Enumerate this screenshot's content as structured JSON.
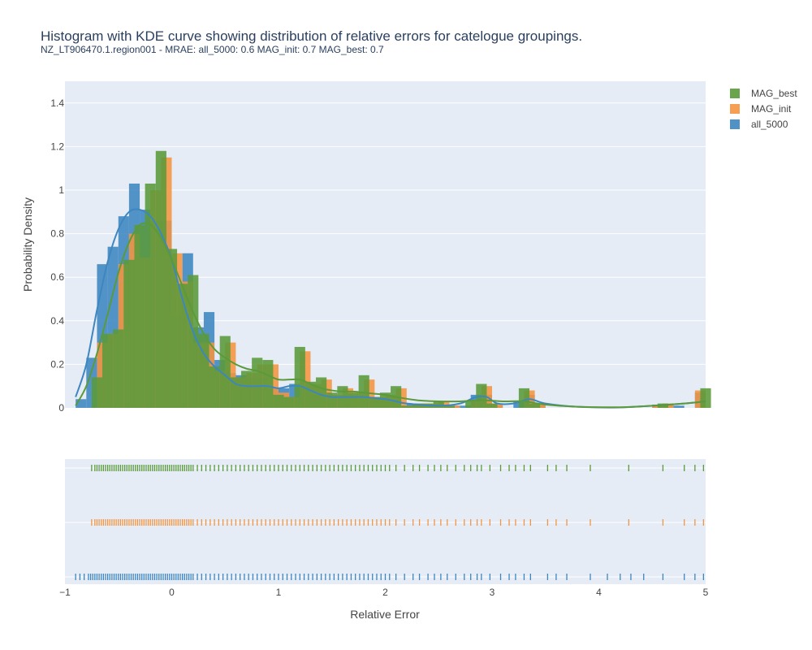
{
  "chart_data": {
    "type": "histogram",
    "title": "Histogram with KDE curve showing distribution of relative errors for catelogue groupings.",
    "subtitle": "NZ_LT906470.1.region001 - MRAE: all_5000: 0.6 MAG_init: 0.7 MAG_best: 0.7",
    "xlabel": "Relative Error",
    "ylabel": "Probability Density",
    "xlim": [
      -1,
      5
    ],
    "ylim": [
      0,
      1.5
    ],
    "x_ticks": [
      -1,
      0,
      1,
      2,
      3,
      4,
      5
    ],
    "x_tick_labels": [
      "−1",
      "0",
      "1",
      "2",
      "3",
      "4",
      "5"
    ],
    "y_ticks": [
      0,
      0.2,
      0.4,
      0.6,
      0.8,
      1,
      1.2,
      1.4
    ],
    "y_tick_labels": [
      "0",
      "0.2",
      "0.4",
      "0.6",
      "0.8",
      "1",
      "1.2",
      "1.4"
    ],
    "grid": true,
    "legend_position": "top-right",
    "legend": [
      "MAG_best",
      "MAG_init",
      "all_5000"
    ],
    "series": [
      {
        "name": "all_5000",
        "color": "#3e86c0",
        "bin_width": 0.1,
        "bins": [
          [
            -0.9,
            0.04
          ],
          [
            -0.8,
            0.23
          ],
          [
            -0.7,
            0.66
          ],
          [
            -0.6,
            0.74
          ],
          [
            -0.5,
            0.88
          ],
          [
            -0.4,
            1.03
          ],
          [
            -0.3,
            0.91
          ],
          [
            -0.2,
            0.86
          ],
          [
            -0.1,
            0.86
          ],
          [
            0.0,
            0.42
          ],
          [
            0.1,
            0.71
          ],
          [
            0.2,
            0.37
          ],
          [
            0.3,
            0.44
          ],
          [
            0.4,
            0.22
          ],
          [
            0.5,
            0.16
          ],
          [
            0.6,
            0.15
          ],
          [
            0.7,
            0.14
          ],
          [
            0.8,
            0.14
          ],
          [
            0.9,
            0.09
          ],
          [
            1.0,
            0.09
          ],
          [
            1.1,
            0.11
          ],
          [
            1.2,
            0.1
          ],
          [
            1.3,
            0.06
          ],
          [
            1.4,
            0.06
          ],
          [
            1.5,
            0.05
          ],
          [
            1.6,
            0.06
          ],
          [
            1.7,
            0.05
          ],
          [
            1.8,
            0.05
          ],
          [
            1.9,
            0.04
          ],
          [
            2.0,
            0.03
          ],
          [
            2.1,
            0.01
          ],
          [
            2.2,
            0.02
          ],
          [
            2.3,
            0.01
          ],
          [
            2.4,
            0.01
          ],
          [
            2.5,
            0.01
          ],
          [
            2.6,
            0.01
          ],
          [
            2.7,
            0.01
          ],
          [
            2.8,
            0.06
          ],
          [
            2.9,
            0.06
          ],
          [
            3.0,
            0.01
          ],
          [
            3.2,
            0.03
          ],
          [
            3.3,
            0.06
          ],
          [
            3.4,
            0.01
          ],
          [
            4.5,
            0.015
          ],
          [
            4.6,
            0.01
          ],
          [
            4.7,
            0.01
          ],
          [
            4.9,
            0.07
          ]
        ],
        "kde": [
          [
            -0.9,
            0.05
          ],
          [
            -0.8,
            0.2
          ],
          [
            -0.7,
            0.45
          ],
          [
            -0.6,
            0.67
          ],
          [
            -0.5,
            0.82
          ],
          [
            -0.4,
            0.9
          ],
          [
            -0.3,
            0.91
          ],
          [
            -0.2,
            0.88
          ],
          [
            -0.1,
            0.8
          ],
          [
            0.0,
            0.68
          ],
          [
            0.1,
            0.5
          ],
          [
            0.2,
            0.35
          ],
          [
            0.3,
            0.25
          ],
          [
            0.4,
            0.19
          ],
          [
            0.5,
            0.15
          ],
          [
            0.6,
            0.11
          ],
          [
            0.7,
            0.1
          ],
          [
            0.8,
            0.1
          ],
          [
            0.9,
            0.1
          ],
          [
            1.0,
            0.09
          ],
          [
            1.1,
            0.1
          ],
          [
            1.2,
            0.1
          ],
          [
            1.3,
            0.08
          ],
          [
            1.4,
            0.06
          ],
          [
            1.5,
            0.05
          ],
          [
            1.6,
            0.05
          ],
          [
            1.7,
            0.05
          ],
          [
            1.8,
            0.05
          ],
          [
            1.9,
            0.045
          ],
          [
            2.0,
            0.04
          ],
          [
            2.1,
            0.03
          ],
          [
            2.2,
            0.02
          ],
          [
            2.5,
            0.01
          ],
          [
            2.7,
            0.02
          ],
          [
            2.85,
            0.05
          ],
          [
            2.95,
            0.05
          ],
          [
            3.05,
            0.02
          ],
          [
            3.2,
            0.02
          ],
          [
            3.35,
            0.04
          ],
          [
            3.5,
            0.02
          ],
          [
            3.8,
            0.005
          ],
          [
            4.2,
            0.002
          ],
          [
            4.5,
            0.01
          ],
          [
            4.8,
            0.02
          ],
          [
            5.0,
            0.03
          ]
        ]
      },
      {
        "name": "MAG_init",
        "color": "#f59440",
        "bin_width": 0.1,
        "bins": [
          [
            -0.7,
            0.3
          ],
          [
            -0.6,
            0.34
          ],
          [
            -0.5,
            0.66
          ],
          [
            -0.4,
            0.8
          ],
          [
            -0.3,
            0.69
          ],
          [
            -0.2,
            1.0
          ],
          [
            -0.1,
            1.15
          ],
          [
            0.0,
            0.71
          ],
          [
            0.1,
            0.58
          ],
          [
            0.2,
            0.3
          ],
          [
            0.3,
            0.3
          ],
          [
            0.4,
            0.17
          ],
          [
            0.5,
            0.3
          ],
          [
            0.6,
            0.14
          ],
          [
            0.7,
            0.16
          ],
          [
            0.8,
            0.2
          ],
          [
            0.9,
            0.2
          ],
          [
            1.0,
            0.07
          ],
          [
            1.1,
            0.05
          ],
          [
            1.2,
            0.26
          ],
          [
            1.3,
            0.11
          ],
          [
            1.4,
            0.13
          ],
          [
            1.5,
            0.06
          ],
          [
            1.6,
            0.09
          ],
          [
            1.7,
            0.07
          ],
          [
            1.8,
            0.13
          ],
          [
            1.9,
            0.05
          ],
          [
            2.0,
            0.06
          ],
          [
            2.1,
            0.09
          ],
          [
            2.2,
            0.01
          ],
          [
            2.3,
            0.02
          ],
          [
            2.4,
            0.02
          ],
          [
            2.5,
            0.03
          ],
          [
            2.6,
            0.01
          ],
          [
            2.8,
            0.03
          ],
          [
            2.9,
            0.1
          ],
          [
            3.0,
            0.02
          ],
          [
            3.3,
            0.08
          ],
          [
            3.4,
            0.02
          ],
          [
            4.5,
            0.01
          ],
          [
            4.6,
            0.02
          ],
          [
            4.9,
            0.08
          ]
        ],
        "kde": []
      },
      {
        "name": "MAG_best",
        "color": "#5a9a3a",
        "bin_width": 0.1,
        "bins": [
          [
            -0.75,
            0.14
          ],
          [
            -0.65,
            0.34
          ],
          [
            -0.55,
            0.36
          ],
          [
            -0.45,
            0.68
          ],
          [
            -0.35,
            0.84
          ],
          [
            -0.25,
            1.03
          ],
          [
            -0.15,
            1.18
          ],
          [
            -0.05,
            0.73
          ],
          [
            0.05,
            0.57
          ],
          [
            0.15,
            0.61
          ],
          [
            0.25,
            0.34
          ],
          [
            0.35,
            0.19
          ],
          [
            0.45,
            0.33
          ],
          [
            0.55,
            0.14
          ],
          [
            0.65,
            0.17
          ],
          [
            0.75,
            0.23
          ],
          [
            0.85,
            0.22
          ],
          [
            0.95,
            0.06
          ],
          [
            1.05,
            0.05
          ],
          [
            1.15,
            0.28
          ],
          [
            1.25,
            0.12
          ],
          [
            1.35,
            0.14
          ],
          [
            1.45,
            0.07
          ],
          [
            1.55,
            0.1
          ],
          [
            1.65,
            0.07
          ],
          [
            1.75,
            0.15
          ],
          [
            1.85,
            0.05
          ],
          [
            1.95,
            0.07
          ],
          [
            2.05,
            0.1
          ],
          [
            2.15,
            0.01
          ],
          [
            2.25,
            0.02
          ],
          [
            2.35,
            0.02
          ],
          [
            2.45,
            0.03
          ],
          [
            2.55,
            0.01
          ],
          [
            2.75,
            0.03
          ],
          [
            2.85,
            0.11
          ],
          [
            2.95,
            0.02
          ],
          [
            3.25,
            0.09
          ],
          [
            3.35,
            0.02
          ],
          [
            4.55,
            0.02
          ],
          [
            4.95,
            0.09
          ]
        ],
        "kde": [
          [
            -0.9,
            0.01
          ],
          [
            -0.8,
            0.1
          ],
          [
            -0.7,
            0.25
          ],
          [
            -0.6,
            0.43
          ],
          [
            -0.5,
            0.62
          ],
          [
            -0.4,
            0.76
          ],
          [
            -0.3,
            0.84
          ],
          [
            -0.2,
            0.84
          ],
          [
            -0.1,
            0.78
          ],
          [
            0.0,
            0.68
          ],
          [
            0.1,
            0.56
          ],
          [
            0.2,
            0.44
          ],
          [
            0.3,
            0.34
          ],
          [
            0.4,
            0.27
          ],
          [
            0.5,
            0.23
          ],
          [
            0.6,
            0.2
          ],
          [
            0.7,
            0.18
          ],
          [
            0.8,
            0.17
          ],
          [
            0.9,
            0.15
          ],
          [
            1.0,
            0.13
          ],
          [
            1.1,
            0.13
          ],
          [
            1.2,
            0.13
          ],
          [
            1.3,
            0.11
          ],
          [
            1.4,
            0.09
          ],
          [
            1.5,
            0.08
          ],
          [
            1.6,
            0.075
          ],
          [
            1.7,
            0.075
          ],
          [
            1.8,
            0.07
          ],
          [
            1.9,
            0.065
          ],
          [
            2.0,
            0.06
          ],
          [
            2.1,
            0.05
          ],
          [
            2.3,
            0.035
          ],
          [
            2.5,
            0.03
          ],
          [
            2.7,
            0.03
          ],
          [
            2.9,
            0.035
          ],
          [
            3.1,
            0.03
          ],
          [
            3.3,
            0.03
          ],
          [
            3.5,
            0.015
          ],
          [
            3.8,
            0.005
          ],
          [
            4.2,
            0.003
          ],
          [
            4.5,
            0.01
          ],
          [
            4.8,
            0.02
          ],
          [
            5.0,
            0.03
          ]
        ]
      }
    ],
    "rug": {
      "rows": [
        "MAG_best",
        "MAG_init",
        "all_5000"
      ],
      "MAG_best": [
        -0.75,
        -0.72,
        -0.7,
        -0.68,
        -0.66,
        -0.64,
        -0.62,
        -0.6,
        -0.58,
        -0.56,
        -0.54,
        -0.52,
        -0.5,
        -0.48,
        -0.46,
        -0.44,
        -0.42,
        -0.4,
        -0.38,
        -0.36,
        -0.34,
        -0.32,
        -0.3,
        -0.28,
        -0.26,
        -0.24,
        -0.22,
        -0.2,
        -0.18,
        -0.16,
        -0.14,
        -0.12,
        -0.1,
        -0.08,
        -0.06,
        -0.04,
        -0.02,
        0,
        0.02,
        0.04,
        0.06,
        0.08,
        0.1,
        0.12,
        0.14,
        0.16,
        0.18,
        0.2,
        0.24,
        0.28,
        0.32,
        0.36,
        0.4,
        0.44,
        0.48,
        0.52,
        0.56,
        0.6,
        0.64,
        0.68,
        0.72,
        0.76,
        0.8,
        0.84,
        0.88,
        0.92,
        0.96,
        1.0,
        1.04,
        1.08,
        1.12,
        1.16,
        1.2,
        1.24,
        1.28,
        1.32,
        1.36,
        1.4,
        1.44,
        1.48,
        1.52,
        1.56,
        1.6,
        1.64,
        1.68,
        1.72,
        1.76,
        1.8,
        1.84,
        1.88,
        1.92,
        1.96,
        2.0,
        2.04,
        2.1,
        2.18,
        2.26,
        2.32,
        2.4,
        2.46,
        2.52,
        2.58,
        2.66,
        2.74,
        2.8,
        2.86,
        2.9,
        2.98,
        3.08,
        3.16,
        3.22,
        3.3,
        3.36,
        3.52,
        3.6,
        3.7,
        3.92,
        4.28,
        4.6,
        4.8,
        4.9,
        4.98
      ],
      "MAG_init": [
        -0.75,
        -0.72,
        -0.7,
        -0.68,
        -0.66,
        -0.64,
        -0.62,
        -0.6,
        -0.58,
        -0.56,
        -0.54,
        -0.52,
        -0.5,
        -0.48,
        -0.46,
        -0.44,
        -0.42,
        -0.4,
        -0.38,
        -0.36,
        -0.34,
        -0.32,
        -0.3,
        -0.28,
        -0.26,
        -0.24,
        -0.22,
        -0.2,
        -0.18,
        -0.16,
        -0.14,
        -0.12,
        -0.1,
        -0.08,
        -0.06,
        -0.04,
        -0.02,
        0,
        0.02,
        0.04,
        0.06,
        0.08,
        0.1,
        0.12,
        0.14,
        0.16,
        0.18,
        0.2,
        0.24,
        0.28,
        0.32,
        0.36,
        0.4,
        0.44,
        0.48,
        0.52,
        0.56,
        0.6,
        0.64,
        0.68,
        0.72,
        0.76,
        0.8,
        0.84,
        0.88,
        0.92,
        0.96,
        1.0,
        1.04,
        1.08,
        1.12,
        1.16,
        1.2,
        1.24,
        1.28,
        1.32,
        1.36,
        1.4,
        1.44,
        1.48,
        1.52,
        1.56,
        1.6,
        1.64,
        1.68,
        1.72,
        1.76,
        1.8,
        1.84,
        1.88,
        1.92,
        1.96,
        2.0,
        2.04,
        2.1,
        2.18,
        2.26,
        2.32,
        2.4,
        2.46,
        2.52,
        2.58,
        2.66,
        2.74,
        2.8,
        2.86,
        2.9,
        2.98,
        3.08,
        3.16,
        3.22,
        3.3,
        3.36,
        3.52,
        3.6,
        3.7,
        3.92,
        4.28,
        4.6,
        4.8,
        4.9,
        4.98
      ],
      "all_5000": [
        -0.9,
        -0.86,
        -0.82,
        -0.78,
        -0.76,
        -0.74,
        -0.72,
        -0.7,
        -0.68,
        -0.66,
        -0.64,
        -0.62,
        -0.6,
        -0.58,
        -0.56,
        -0.54,
        -0.52,
        -0.5,
        -0.48,
        -0.46,
        -0.44,
        -0.42,
        -0.4,
        -0.38,
        -0.36,
        -0.34,
        -0.32,
        -0.3,
        -0.28,
        -0.26,
        -0.24,
        -0.22,
        -0.2,
        -0.18,
        -0.16,
        -0.14,
        -0.12,
        -0.1,
        -0.08,
        -0.06,
        -0.04,
        -0.02,
        0,
        0.02,
        0.04,
        0.06,
        0.08,
        0.1,
        0.12,
        0.14,
        0.16,
        0.18,
        0.2,
        0.24,
        0.28,
        0.32,
        0.36,
        0.4,
        0.44,
        0.48,
        0.52,
        0.56,
        0.6,
        0.64,
        0.68,
        0.72,
        0.76,
        0.8,
        0.84,
        0.88,
        0.92,
        0.96,
        1.0,
        1.04,
        1.08,
        1.12,
        1.16,
        1.2,
        1.24,
        1.28,
        1.32,
        1.36,
        1.4,
        1.44,
        1.48,
        1.52,
        1.56,
        1.6,
        1.64,
        1.68,
        1.72,
        1.76,
        1.8,
        1.84,
        1.88,
        1.92,
        1.96,
        2.0,
        2.04,
        2.1,
        2.18,
        2.26,
        2.32,
        2.4,
        2.46,
        2.52,
        2.58,
        2.66,
        2.74,
        2.8,
        2.86,
        2.9,
        2.98,
        3.08,
        3.16,
        3.22,
        3.3,
        3.36,
        3.52,
        3.6,
        3.7,
        3.92,
        4.08,
        4.2,
        4.3,
        4.42,
        4.6,
        4.8,
        4.9,
        4.98
      ]
    }
  }
}
